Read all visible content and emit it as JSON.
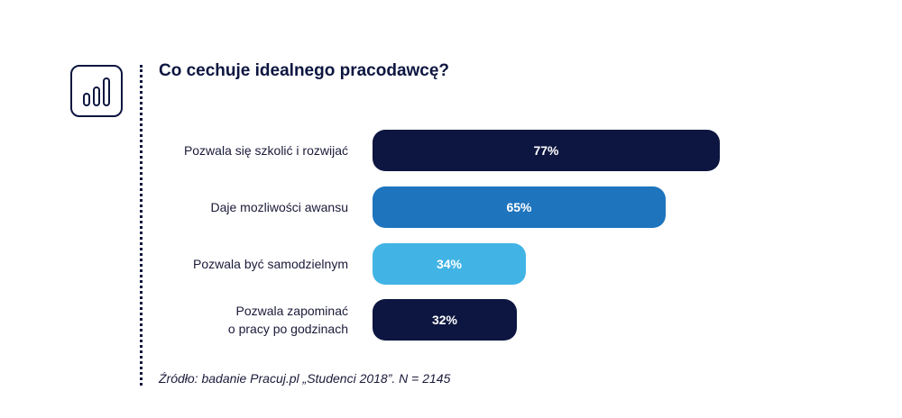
{
  "title": "Co cechuje idealnego pracodawcę?",
  "source": "Źródło: badanie Pracuj.pl „Studenci 2018”. N = 2145",
  "logo_icon": "bar-chart-icon",
  "chart_data": {
    "type": "bar",
    "orientation": "horizontal",
    "title": "Co cechuje idealnego pracodawcę?",
    "categories": [
      [
        "Pozwala się szkolić i rozwijać"
      ],
      [
        "Daje mozliwości awansu"
      ],
      [
        "Pozwala być samodzielnym"
      ],
      [
        "Pozwala zapominać",
        "o pracy po godzinach"
      ]
    ],
    "values": [
      77,
      65,
      34,
      32
    ],
    "value_labels": [
      "77%",
      "65%",
      "34%",
      "32%"
    ],
    "colors": [
      "#0d1640",
      "#1e74bd",
      "#41b4e5",
      "#0d1640"
    ],
    "xlim": [
      0,
      100
    ],
    "grid": false,
    "legend": "none"
  }
}
